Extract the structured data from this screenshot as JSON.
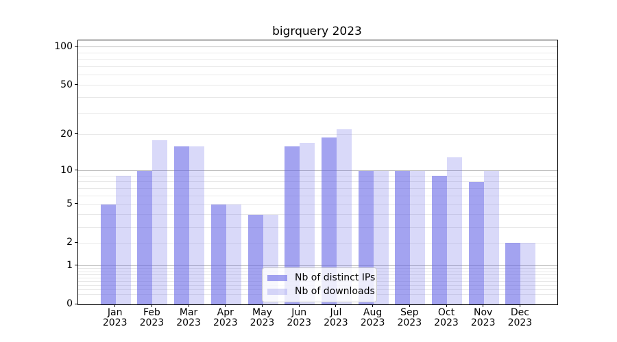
{
  "title": "bigrquery 2023",
  "chart_data": {
    "type": "bar",
    "title": "bigrquery 2023",
    "categories": [
      "Jan",
      "Feb",
      "Mar",
      "Apr",
      "May",
      "Jun",
      "Jul",
      "Aug",
      "Sep",
      "Oct",
      "Nov",
      "Dec"
    ],
    "year": "2023",
    "series": [
      {
        "name": "Nb of distinct IPs",
        "color": "rgba(102,102,230,0.6)",
        "color_hex": "#a8a8f0",
        "values": [
          5,
          10,
          16,
          5,
          4,
          16,
          19,
          10,
          10,
          9,
          8,
          2
        ]
      },
      {
        "name": "Nb of downloads",
        "color": "rgba(102,102,230,0.25)",
        "color_hex": "#dcdcf8",
        "values": [
          9,
          18,
          16,
          5,
          4,
          17,
          22,
          10,
          10,
          13,
          10,
          2
        ]
      }
    ],
    "yscale": "log1p",
    "ylim": [
      0,
      113
    ],
    "yticks": [
      0,
      1,
      2,
      5,
      10,
      20,
      50,
      100
    ],
    "minor_gridlines": [
      0.2,
      0.3,
      0.4,
      0.5,
      0.6,
      0.7,
      0.8,
      0.9,
      2,
      3,
      4,
      5,
      6,
      7,
      8,
      9,
      20,
      30,
      40,
      50,
      60,
      70,
      80,
      90
    ],
    "major_gridlines": [
      1,
      10,
      100
    ],
    "grid": true,
    "legend_position": "lower center",
    "xlabel": "",
    "ylabel": ""
  },
  "colors": {
    "background": "#ffffff",
    "spine": "#000000",
    "major_grid": "#b9b9b9",
    "minor_grid": "#e8e8e8",
    "legend_border": "#cccccc",
    "legend_background": "rgba(255,255,255,0.8)"
  }
}
